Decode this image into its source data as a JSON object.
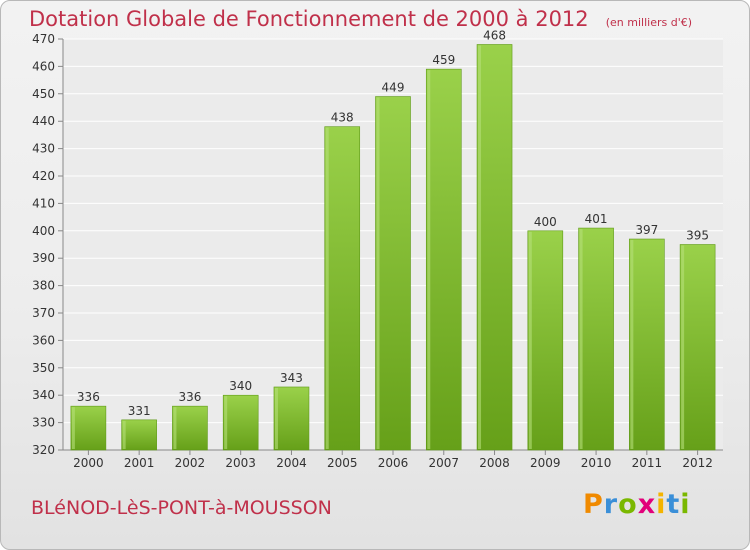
{
  "chart_data": {
    "type": "bar",
    "title": "Dotation Globale de Fonctionnement de 2000 à 2012",
    "subtitle": "(en milliers d'€)",
    "categories": [
      "2000",
      "2001",
      "2002",
      "2003",
      "2004",
      "2005",
      "2006",
      "2007",
      "2008",
      "2009",
      "2010",
      "2011",
      "2012"
    ],
    "values": [
      336,
      331,
      336,
      340,
      343,
      438,
      449,
      459,
      468,
      400,
      401,
      397,
      395
    ],
    "ylim": [
      320,
      470
    ],
    "yticks": [
      320,
      330,
      340,
      350,
      360,
      370,
      380,
      390,
      400,
      410,
      420,
      430,
      440,
      450,
      460,
      470
    ],
    "grid": true,
    "legend": "none",
    "bar_color": "#8cc63f"
  },
  "footer": {
    "commune": "BLéNOD-LèS-PONT-à-MOUSSON"
  },
  "brand": {
    "letters": [
      "P",
      "r",
      "o",
      "x",
      "i",
      "t",
      "i"
    ],
    "colors": [
      "#f08a00",
      "#3a8fd8",
      "#7ab800",
      "#e2007a",
      "#f4b400",
      "#3a8fd8",
      "#7ab800"
    ]
  }
}
